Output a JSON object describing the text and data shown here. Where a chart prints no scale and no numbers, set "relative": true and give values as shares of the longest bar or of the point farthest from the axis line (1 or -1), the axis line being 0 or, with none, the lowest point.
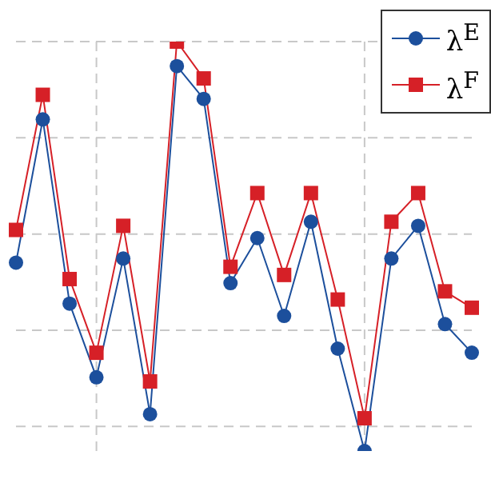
{
  "chart_data": {
    "type": "line",
    "relative": true,
    "categories": [
      null,
      null,
      null,
      null,
      null,
      null,
      null,
      null,
      null,
      null,
      null,
      null,
      null,
      null,
      null,
      null,
      null,
      null
    ],
    "grid": true,
    "legend": "top right",
    "series": [
      {
        "name": "λ$^{E}$",
        "color": "#1c4f9c",
        "marker": "circle",
        "values": [
          0.46,
          0.81,
          0.36,
          0.18,
          0.47,
          0.09,
          0.94,
          0.86,
          0.41,
          0.52,
          0.33,
          0.56,
          0.25,
          0,
          0.47,
          0.55,
          0.31,
          0.24
        ]
      },
      {
        "name": "λ$^{F}$",
        "color": "#d62027",
        "marker": "square",
        "values": [
          0.54,
          0.87,
          0.42,
          0.24,
          0.55,
          0.17,
          1,
          0.91,
          0.45,
          0.63,
          0.43,
          0.63,
          0.37,
          0.08,
          0.56,
          0.63,
          0.39,
          0.35
        ]
      }
    ]
  }
}
